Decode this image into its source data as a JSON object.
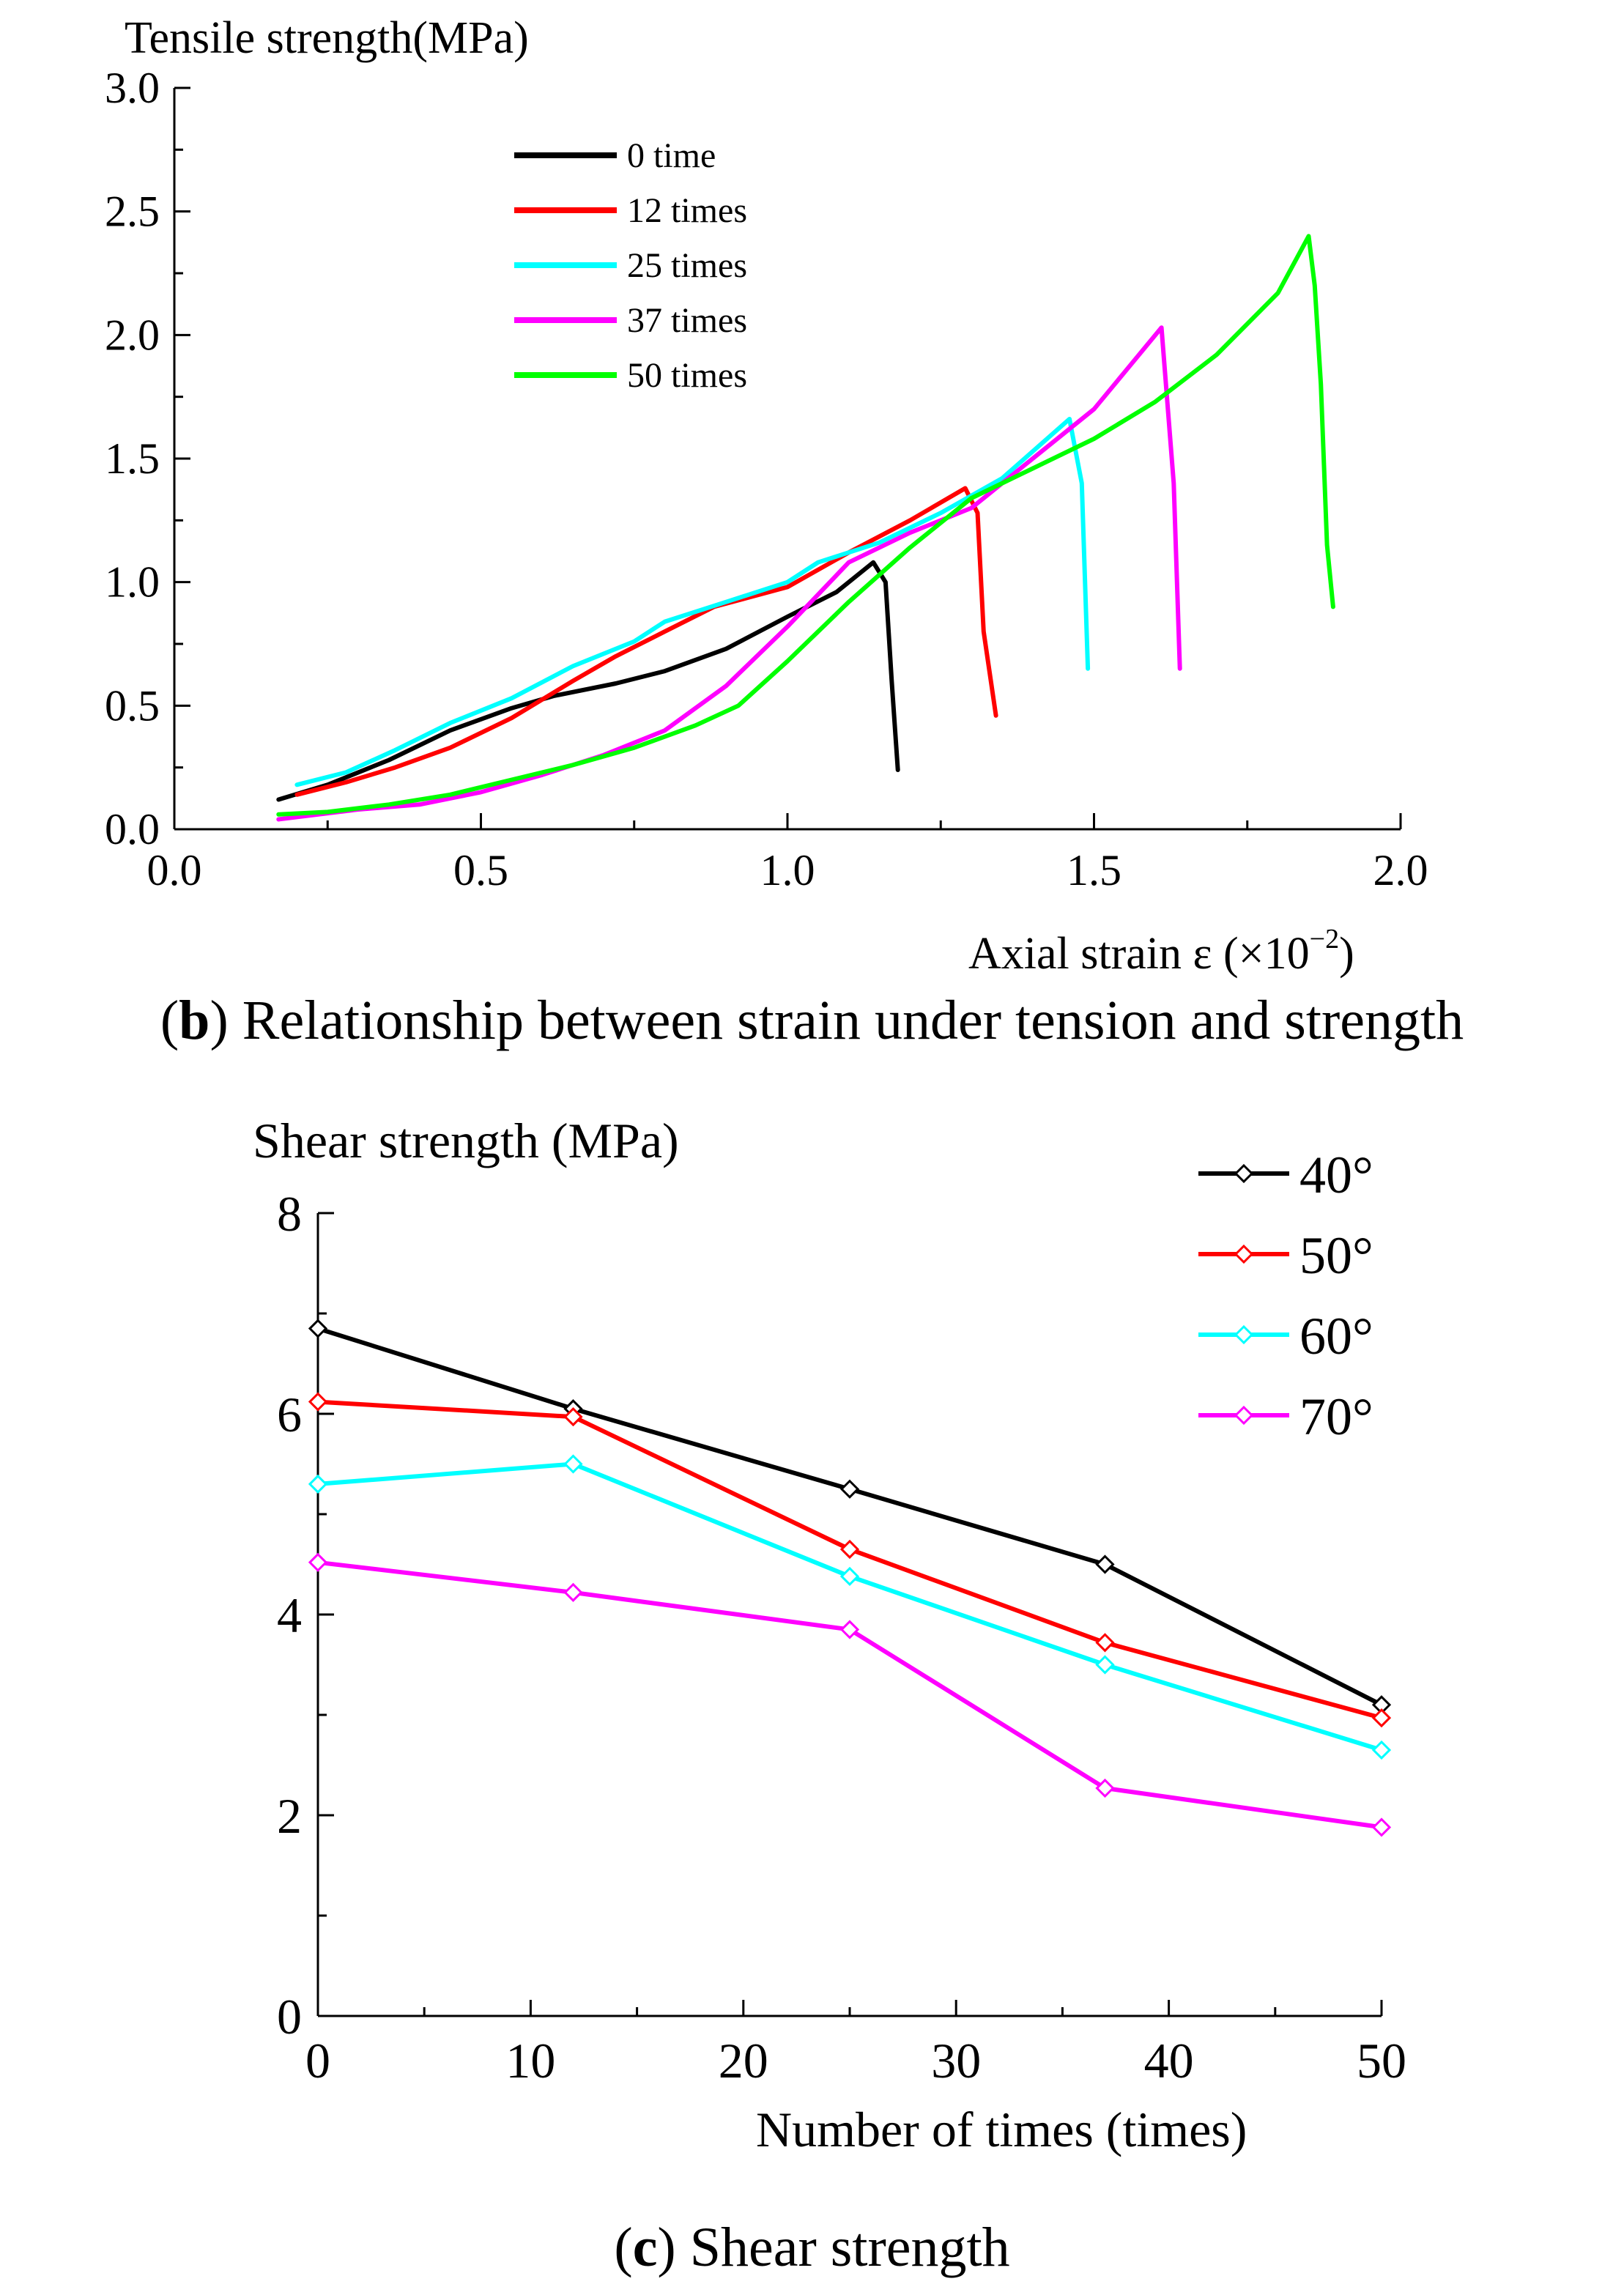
{
  "figure_b": {
    "caption_letter": "b",
    "caption_text": "Relationship between strain under tension and strength"
  },
  "figure_c": {
    "caption_letter": "c",
    "caption_text": "Shear strength"
  },
  "chart_data": [
    {
      "type": "line",
      "title": "",
      "ylabel": "Tensile strength(MPa)",
      "xlabel": "Axial strain ε (×10",
      "xlabel_sup": "−2",
      "xlabel_end": ")",
      "xlim": [
        0,
        2.0
      ],
      "ylim": [
        0,
        3.0
      ],
      "xticks": [
        "0.0",
        "0.5",
        "1.0",
        "1.5",
        "2.0"
      ],
      "yticks": [
        "0.0",
        "0.5",
        "1.0",
        "1.5",
        "2.0",
        "2.5",
        "3.0"
      ],
      "legend_position": "top-left",
      "grid": false,
      "series": [
        {
          "name": "0 time",
          "color": "#000000",
          "points": [
            [
              0.17,
              0.12
            ],
            [
              0.25,
              0.18
            ],
            [
              0.35,
              0.28
            ],
            [
              0.45,
              0.4
            ],
            [
              0.55,
              0.49
            ],
            [
              0.62,
              0.54
            ],
            [
              0.72,
              0.59
            ],
            [
              0.8,
              0.64
            ],
            [
              0.9,
              0.73
            ],
            [
              1.0,
              0.86
            ],
            [
              1.08,
              0.96
            ],
            [
              1.14,
              1.08
            ],
            [
              1.16,
              1.0
            ],
            [
              1.17,
              0.6
            ],
            [
              1.18,
              0.24
            ]
          ]
        },
        {
          "name": "12 times",
          "color": "#ff0000",
          "points": [
            [
              0.2,
              0.14
            ],
            [
              0.28,
              0.19
            ],
            [
              0.36,
              0.25
            ],
            [
              0.45,
              0.33
            ],
            [
              0.55,
              0.45
            ],
            [
              0.65,
              0.6
            ],
            [
              0.72,
              0.7
            ],
            [
              0.8,
              0.8
            ],
            [
              0.88,
              0.9
            ],
            [
              1.0,
              0.98
            ],
            [
              1.1,
              1.12
            ],
            [
              1.2,
              1.25
            ],
            [
              1.29,
              1.38
            ],
            [
              1.31,
              1.28
            ],
            [
              1.32,
              0.8
            ],
            [
              1.34,
              0.46
            ]
          ]
        },
        {
          "name": "25 times",
          "color": "#00ffff",
          "points": [
            [
              0.2,
              0.18
            ],
            [
              0.28,
              0.23
            ],
            [
              0.36,
              0.32
            ],
            [
              0.45,
              0.43
            ],
            [
              0.55,
              0.53
            ],
            [
              0.65,
              0.66
            ],
            [
              0.75,
              0.76
            ],
            [
              0.8,
              0.84
            ],
            [
              0.9,
              0.92
            ],
            [
              1.0,
              1.0
            ],
            [
              1.05,
              1.08
            ],
            [
              1.15,
              1.16
            ],
            [
              1.25,
              1.28
            ],
            [
              1.35,
              1.42
            ],
            [
              1.46,
              1.66
            ],
            [
              1.48,
              1.4
            ],
            [
              1.49,
              0.65
            ]
          ]
        },
        {
          "name": "37 times",
          "color": "#ff00ff",
          "points": [
            [
              0.17,
              0.04
            ],
            [
              0.3,
              0.08
            ],
            [
              0.4,
              0.1
            ],
            [
              0.5,
              0.15
            ],
            [
              0.6,
              0.22
            ],
            [
              0.7,
              0.3
            ],
            [
              0.8,
              0.4
            ],
            [
              0.9,
              0.58
            ],
            [
              1.0,
              0.82
            ],
            [
              1.1,
              1.08
            ],
            [
              1.2,
              1.2
            ],
            [
              1.3,
              1.3
            ],
            [
              1.4,
              1.5
            ],
            [
              1.5,
              1.7
            ],
            [
              1.61,
              2.03
            ],
            [
              1.63,
              1.4
            ],
            [
              1.64,
              0.65
            ]
          ]
        },
        {
          "name": "50 times",
          "color": "#00ff00",
          "points": [
            [
              0.17,
              0.06
            ],
            [
              0.25,
              0.07
            ],
            [
              0.35,
              0.1
            ],
            [
              0.45,
              0.14
            ],
            [
              0.55,
              0.2
            ],
            [
              0.65,
              0.26
            ],
            [
              0.75,
              0.33
            ],
            [
              0.85,
              0.42
            ],
            [
              0.92,
              0.5
            ],
            [
              1.0,
              0.68
            ],
            [
              1.1,
              0.92
            ],
            [
              1.2,
              1.14
            ],
            [
              1.3,
              1.34
            ],
            [
              1.4,
              1.46
            ],
            [
              1.5,
              1.58
            ],
            [
              1.6,
              1.73
            ],
            [
              1.7,
              1.92
            ],
            [
              1.8,
              2.17
            ],
            [
              1.85,
              2.4
            ],
            [
              1.86,
              2.2
            ],
            [
              1.87,
              1.8
            ],
            [
              1.88,
              1.15
            ],
            [
              1.89,
              0.9
            ]
          ]
        }
      ]
    },
    {
      "type": "line",
      "title": "",
      "ylabel": "Shear strength (MPa)",
      "xlabel": "Number of times (times)",
      "xlim": [
        0,
        50
      ],
      "ylim": [
        0,
        8
      ],
      "xticks": [
        "0",
        "10",
        "20",
        "30",
        "40",
        "50"
      ],
      "yticks": [
        "0",
        "2",
        "4",
        "6",
        "8"
      ],
      "legend_position": "top-right",
      "grid": false,
      "marker": "diamond",
      "x": [
        0,
        12,
        25,
        37,
        50
      ],
      "series": [
        {
          "name": "40°",
          "color": "#000000",
          "values": [
            6.85,
            6.05,
            5.25,
            4.5,
            3.1
          ]
        },
        {
          "name": "50°",
          "color": "#ff0000",
          "values": [
            6.12,
            5.97,
            4.65,
            3.72,
            2.97
          ]
        },
        {
          "name": "60°",
          "color": "#00ffff",
          "values": [
            5.3,
            5.5,
            4.38,
            3.5,
            2.65
          ]
        },
        {
          "name": "70°",
          "color": "#ff00ff",
          "values": [
            4.52,
            4.22,
            3.85,
            2.27,
            1.88
          ]
        }
      ]
    }
  ]
}
